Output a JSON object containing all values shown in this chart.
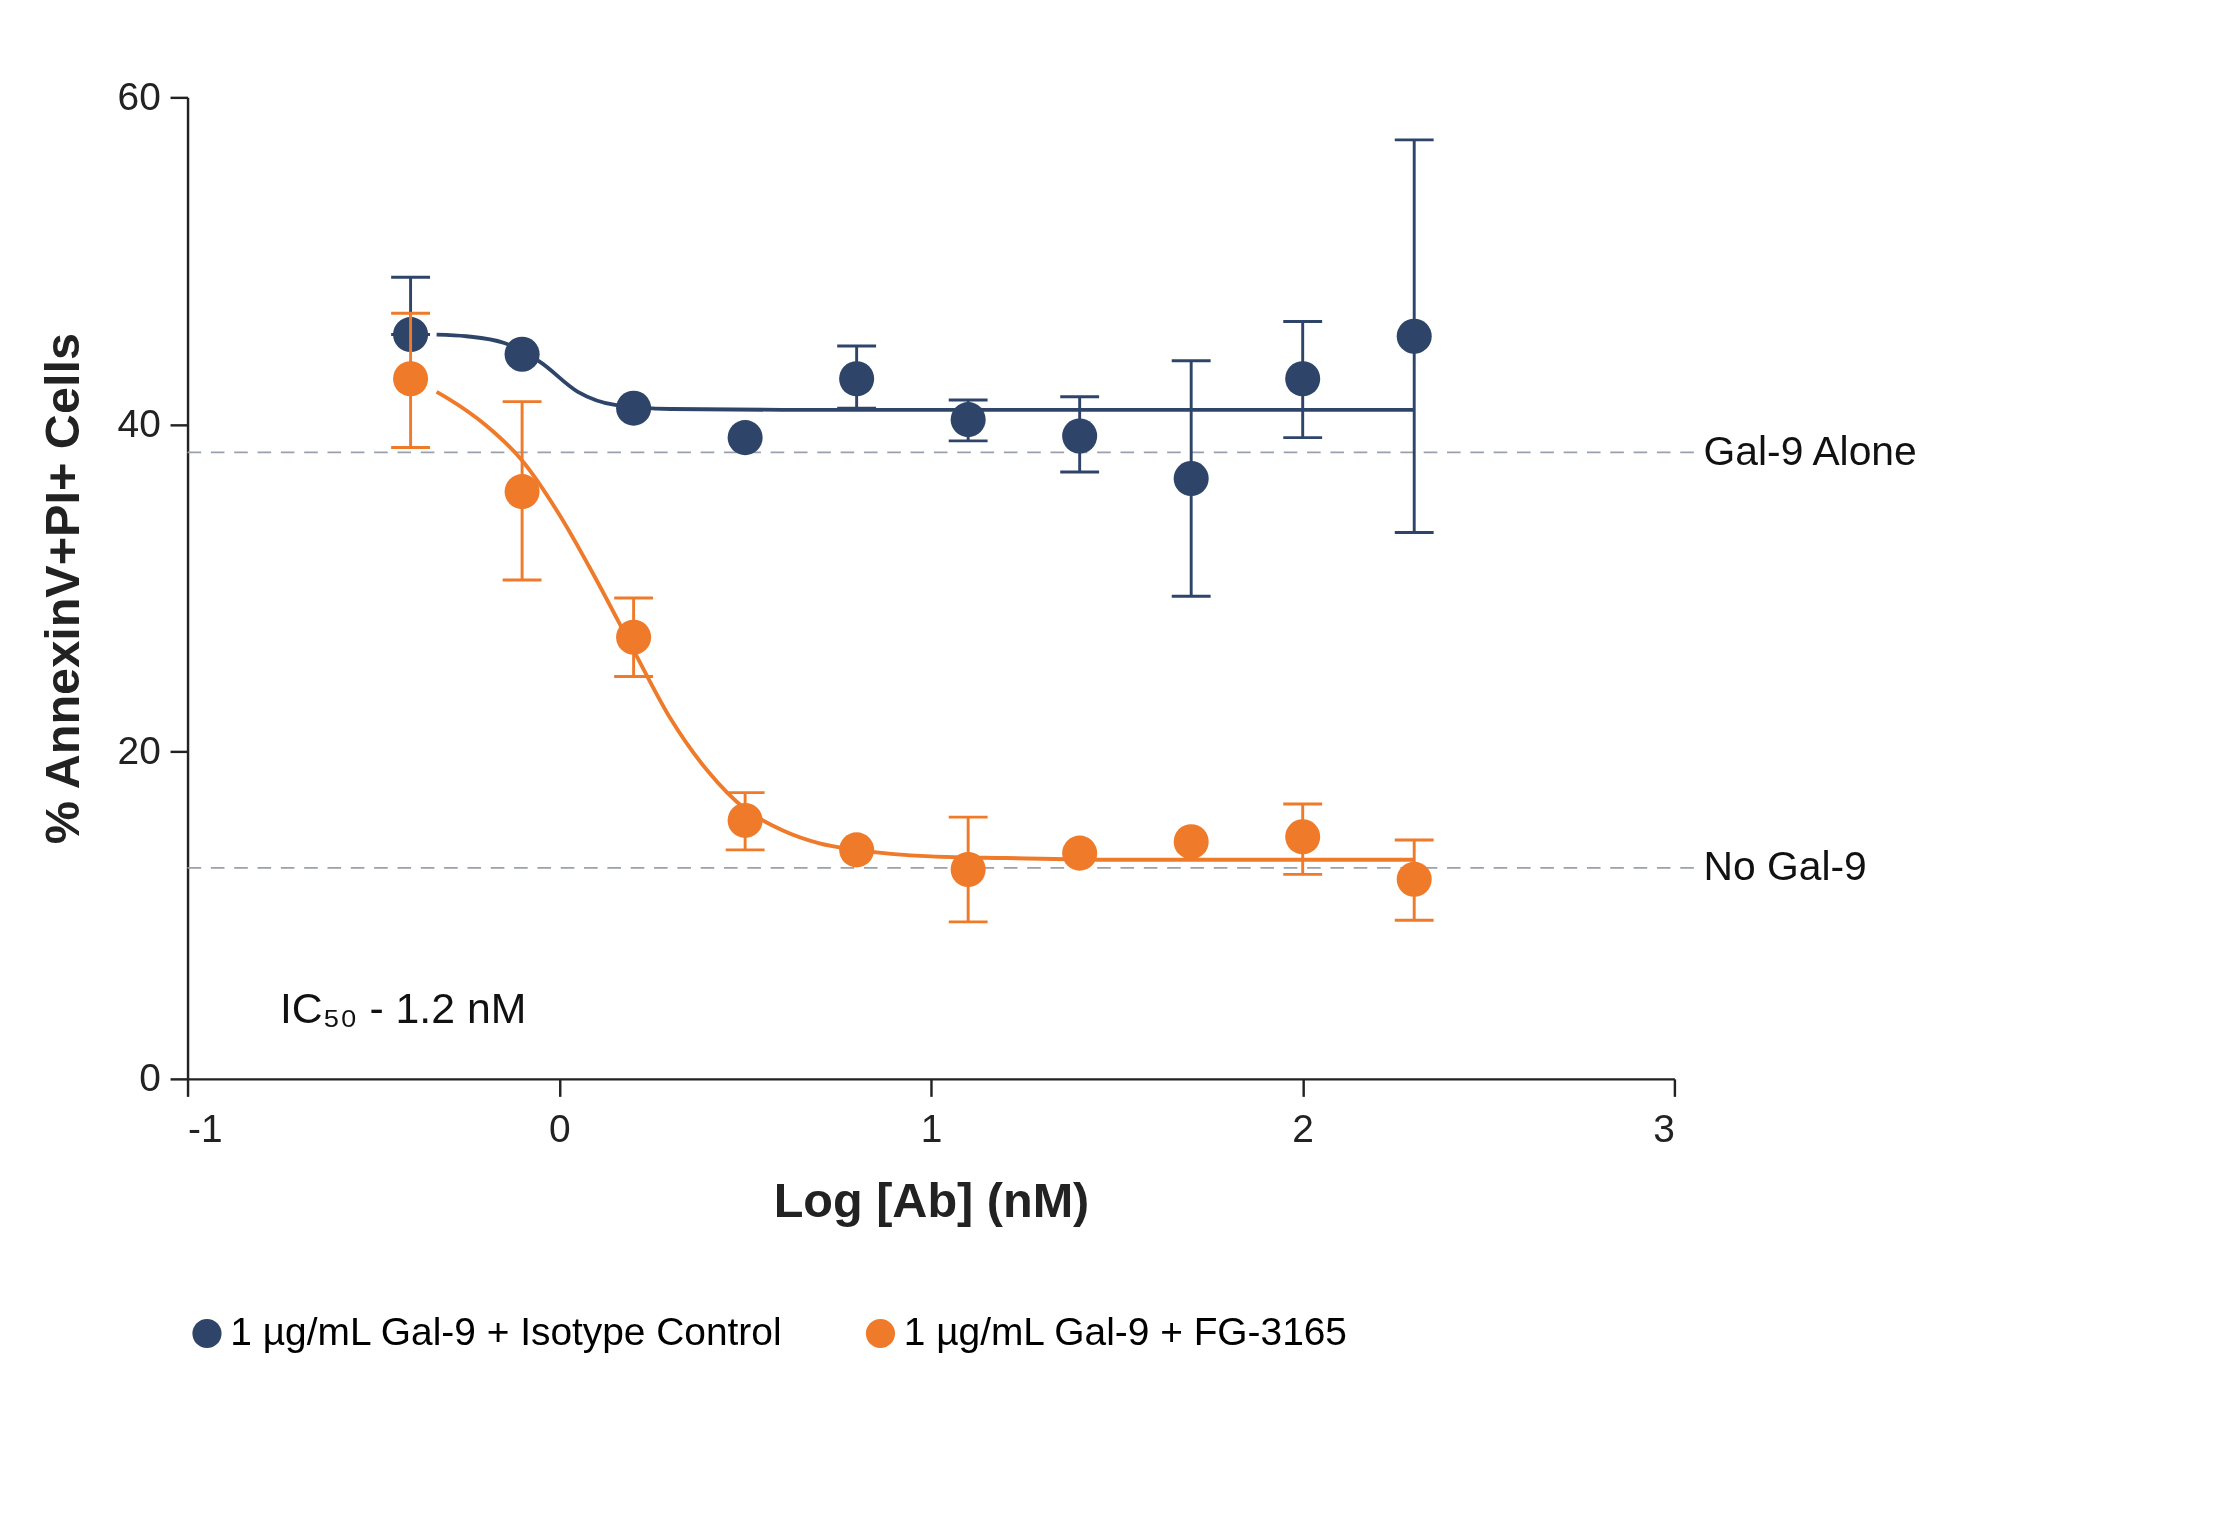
{
  "chart_data": {
    "type": "scatter",
    "xlabel": "Log [Ab] (nM)",
    "ylabel": "% AnnexinV+PI+ Cells",
    "xlim": [
      -1,
      3
    ],
    "xticks": [
      -1,
      0,
      1,
      2,
      3
    ],
    "ylim": [
      0,
      60
    ],
    "yticks": [
      0,
      20,
      40,
      60
    ],
    "grid": false,
    "legend": "bottom",
    "marker": "circle",
    "x": [
      -0.4,
      -0.1,
      0.2,
      0.5,
      0.8,
      1.1,
      1.4,
      1.7,
      2.0,
      2.3
    ],
    "series": [
      {
        "name": "1 µg/mL Gal-9 + Isotype Control",
        "type": "scatter",
        "color": "#2e4468",
        "values": [
          45.5,
          44.3,
          41.0,
          39.2,
          42.8,
          40.3,
          39.3,
          36.7,
          42.8,
          45.4
        ],
        "errors": [
          [
            45.5,
            49.0
          ],
          null,
          null,
          null,
          [
            41,
            44.8
          ],
          [
            39.0,
            41.5
          ],
          [
            37.1,
            41.7
          ],
          [
            29.5,
            43.9
          ],
          [
            39.2,
            46.3
          ],
          [
            33.4,
            57.4
          ]
        ]
      },
      {
        "name": "1 µg/mL Gal-9 + FG-3165",
        "type": "scatter",
        "color": "#ef7a2a",
        "values": [
          42.8,
          35.9,
          27.0,
          15.8,
          14.0,
          12.8,
          13.8,
          14.5,
          14.8,
          12.2
        ],
        "errors": [
          [
            38.6,
            46.8
          ],
          [
            30.5,
            41.4
          ],
          [
            24.6,
            29.4
          ],
          [
            14.0,
            17.5
          ],
          null,
          [
            9.6,
            16.0
          ],
          null,
          null,
          [
            12.5,
            16.8
          ],
          [
            9.7,
            14.6
          ]
        ]
      },
      {
        "type": "line",
        "marker": "none",
        "color": "#2e4468",
        "x": [
          -0.33,
          -0.25,
          -0.15,
          -0.05,
          0.05,
          0.15,
          0.3,
          0.6,
          1.0,
          1.5,
          2.0,
          2.3
        ],
        "values": [
          45.5,
          45.4,
          45.0,
          43.8,
          42.0,
          41.2,
          40.95,
          40.9,
          40.9,
          40.9,
          40.9,
          40.9
        ]
      },
      {
        "type": "line",
        "marker": "none",
        "color": "#ef7a2a",
        "x": [
          -0.33,
          -0.3,
          -0.2,
          -0.1,
          0.0,
          0.1,
          0.2,
          0.3,
          0.4,
          0.5,
          0.6,
          0.7,
          0.8,
          1.0,
          1.2,
          1.5,
          2.0,
          2.3
        ],
        "values": [
          42.0,
          41.6,
          40.0,
          37.8,
          34.5,
          30.5,
          26.2,
          22.0,
          18.8,
          16.5,
          15.2,
          14.4,
          14.0,
          13.6,
          13.5,
          13.4,
          13.4,
          13.4
        ]
      }
    ],
    "ref_lines": [
      {
        "axis": "y",
        "value": 38.3,
        "label": "Gal-9 Alone",
        "color": "#9aa0ad",
        "line_style": "dashed"
      },
      {
        "axis": "y",
        "value": 12.9,
        "label": "No Gal-9",
        "color": "#9aa0ad",
        "line_style": "dashed"
      }
    ],
    "annotations": [
      "IC₅₀ - 1.2 nM"
    ]
  }
}
